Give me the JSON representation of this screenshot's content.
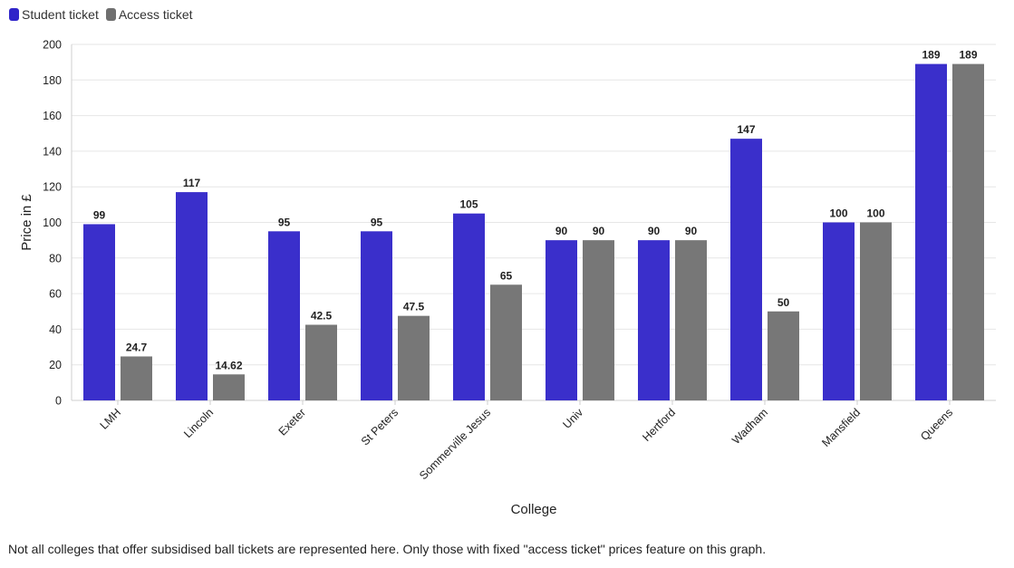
{
  "legend": [
    {
      "label": "Student ticket",
      "color": "#2f24c9"
    },
    {
      "label": "Access ticket",
      "color": "#6f6f6f"
    }
  ],
  "footnote": "Not all colleges that offer subsidised ball tickets are represented here. Only those with fixed \"access ticket\" prices feature on this graph.",
  "chart_data": {
    "type": "bar",
    "title": "",
    "xlabel": "College",
    "ylabel": "Price in £",
    "ylim": [
      0,
      200
    ],
    "yticks": [
      0,
      20,
      40,
      60,
      80,
      100,
      120,
      140,
      160,
      180,
      200
    ],
    "grid": true,
    "legend_position": "top-left",
    "categories": [
      "LMH",
      "Lincoln",
      "Exeter",
      "St Peters",
      "Sommerville Jesus",
      "Univ",
      "Hertford",
      "Wadham",
      "Mansfield",
      "Queens"
    ],
    "series": [
      {
        "name": "Student ticket",
        "color": "#3a2fcb",
        "values": [
          99,
          117,
          95,
          95,
          105,
          90,
          90,
          147,
          100,
          189
        ]
      },
      {
        "name": "Access ticket",
        "color": "#777777",
        "values": [
          24.7,
          14.62,
          42.5,
          47.5,
          65,
          90,
          90,
          50,
          100,
          189
        ]
      }
    ]
  }
}
